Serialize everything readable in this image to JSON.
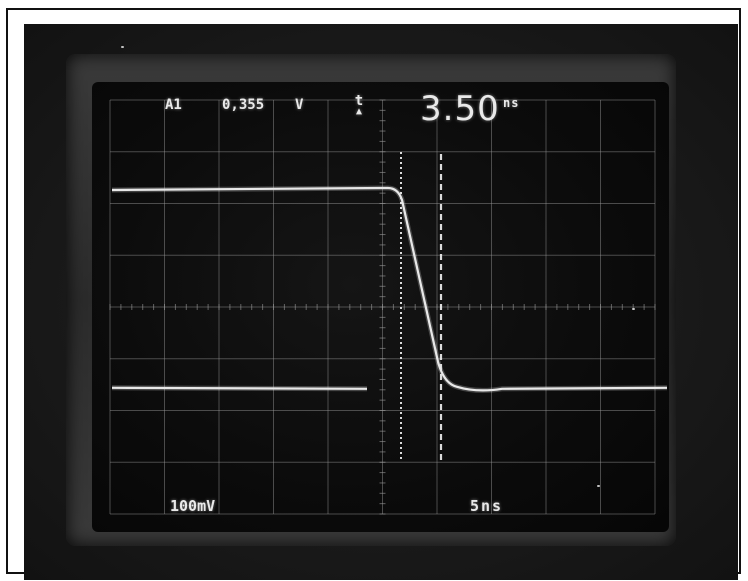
{
  "readout": {
    "channel": "A1",
    "voltage": "0,355",
    "voltage_unit": "V",
    "delta_symbol": "t",
    "delta_marker": "▲",
    "delta_time": "3.50",
    "delta_time_unit": "ns"
  },
  "scale": {
    "vertical": "100mV",
    "horizontal": "5ns"
  },
  "display": {
    "trace_color": "#e8e8e8",
    "grid_color": "#9a9a9a",
    "cursor_color": "#f2f2f2",
    "screen_color": "#0b0b0b",
    "grid_divisions_x": 10,
    "grid_divisions_y": 8
  },
  "waveform": {
    "description_kind": "falling-edge",
    "high_level_div": 1.7,
    "low_level_div": 5.6
  }
}
